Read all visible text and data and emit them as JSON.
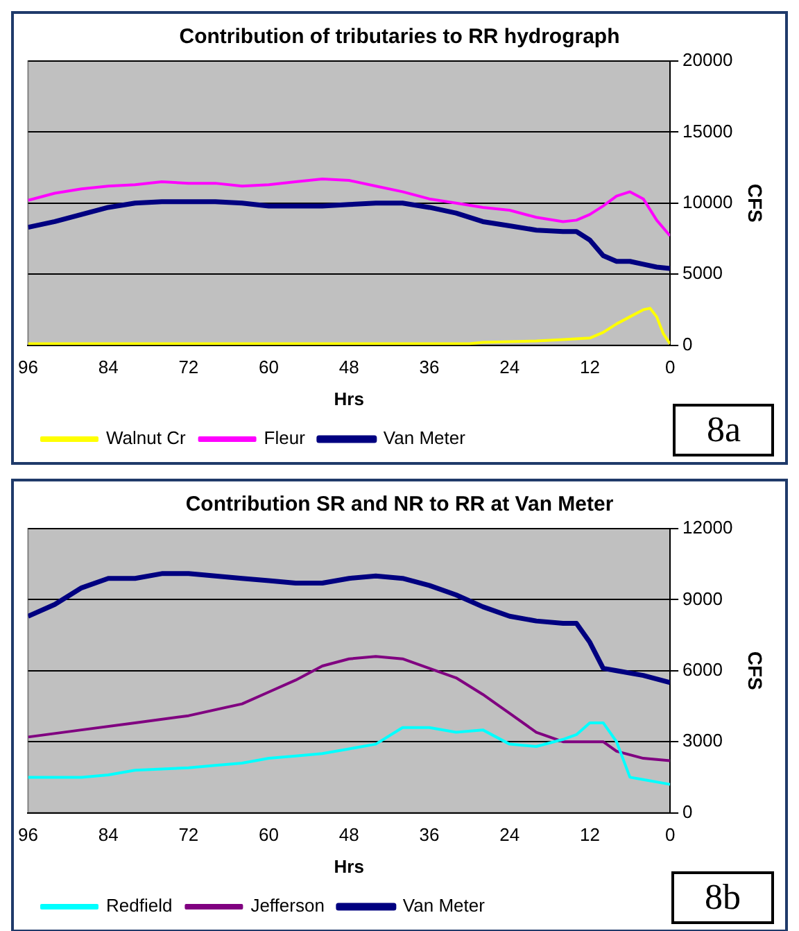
{
  "chart_data": [
    {
      "type": "line",
      "title": "Contribution of tributaries to RR hydrograph",
      "xlabel": "Hrs",
      "ylabel": "CFS",
      "xlim": [
        96,
        0
      ],
      "xticks": [
        96,
        84,
        72,
        60,
        48,
        36,
        24,
        12,
        0
      ],
      "ylim": [
        0,
        20000
      ],
      "yticks": [
        0,
        5000,
        10000,
        15000,
        20000
      ],
      "grid": "y",
      "legend": "bottom",
      "marker": "none",
      "annotations": [
        "8a"
      ],
      "series": [
        {
          "name": "Walnut Cr",
          "color": "#ffff00",
          "x": [
            96,
            80,
            60,
            40,
            30,
            28,
            20,
            16,
            12,
            10,
            8,
            6,
            4,
            3,
            2,
            1,
            0
          ],
          "values": [
            100,
            100,
            100,
            100,
            100,
            200,
            300,
            400,
            500,
            900,
            1500,
            2000,
            2500,
            2600,
            2000,
            800,
            100
          ]
        },
        {
          "name": "Fleur",
          "color": "#ff00ff",
          "x": [
            96,
            92,
            88,
            84,
            80,
            76,
            72,
            68,
            64,
            60,
            56,
            52,
            48,
            44,
            40,
            36,
            32,
            28,
            24,
            20,
            16,
            14,
            12,
            10,
            8,
            6,
            4,
            2,
            0
          ],
          "values": [
            10200,
            10700,
            11000,
            11200,
            11300,
            11500,
            11400,
            11400,
            11200,
            11300,
            11500,
            11700,
            11600,
            11200,
            10800,
            10300,
            10000,
            9700,
            9500,
            9000,
            8700,
            8800,
            9200,
            9800,
            10500,
            10800,
            10300,
            8800,
            7700
          ]
        },
        {
          "name": "Van Meter",
          "color": "#000080",
          "x": [
            96,
            92,
            88,
            84,
            80,
            76,
            72,
            68,
            64,
            60,
            56,
            52,
            48,
            44,
            40,
            36,
            32,
            28,
            24,
            20,
            16,
            14,
            12,
            10,
            8,
            6,
            4,
            2,
            0
          ],
          "values": [
            8300,
            8700,
            9200,
            9700,
            10000,
            10100,
            10100,
            10100,
            10000,
            9800,
            9800,
            9800,
            9900,
            10000,
            10000,
            9700,
            9300,
            8700,
            8400,
            8100,
            8000,
            8000,
            7400,
            6300,
            5900,
            5900,
            5700,
            5500,
            5400
          ]
        }
      ]
    },
    {
      "type": "line",
      "title": "Contribution SR and NR to RR at Van Meter",
      "xlabel": "Hrs",
      "ylabel": "CFS",
      "xlim": [
        96,
        0
      ],
      "xticks": [
        96,
        84,
        72,
        60,
        48,
        36,
        24,
        12,
        0
      ],
      "ylim": [
        0,
        12000
      ],
      "yticks": [
        0,
        3000,
        6000,
        9000,
        12000
      ],
      "grid": "y",
      "legend": "bottom",
      "marker": "none",
      "annotations": [
        "8b"
      ],
      "series": [
        {
          "name": "Redfield",
          "color": "#00ffff",
          "x": [
            96,
            88,
            84,
            80,
            72,
            68,
            64,
            60,
            56,
            52,
            48,
            44,
            40,
            36,
            32,
            28,
            24,
            20,
            16,
            14,
            12,
            10,
            8,
            6,
            4,
            0
          ],
          "values": [
            1500,
            1500,
            1600,
            1800,
            1900,
            2000,
            2100,
            2300,
            2400,
            2500,
            2700,
            2900,
            3600,
            3600,
            3400,
            3500,
            2900,
            2800,
            3100,
            3300,
            3800,
            3800,
            3000,
            1500,
            1400,
            1200
          ]
        },
        {
          "name": "Jefferson",
          "color": "#800080",
          "x": [
            96,
            88,
            80,
            72,
            64,
            60,
            56,
            52,
            48,
            44,
            40,
            36,
            32,
            28,
            24,
            20,
            16,
            12,
            10,
            8,
            4,
            0
          ],
          "values": [
            3200,
            3500,
            3800,
            4100,
            4600,
            5100,
            5600,
            6200,
            6500,
            6600,
            6500,
            6100,
            5700,
            5000,
            4200,
            3400,
            3000,
            3000,
            3000,
            2600,
            2300,
            2200
          ]
        },
        {
          "name": "Van Meter",
          "color": "#000080",
          "x": [
            96,
            92,
            88,
            84,
            80,
            76,
            72,
            68,
            64,
            60,
            56,
            52,
            48,
            44,
            40,
            36,
            32,
            28,
            24,
            20,
            16,
            14,
            12,
            10,
            8,
            4,
            0
          ],
          "values": [
            8300,
            8800,
            9500,
            9900,
            9900,
            10100,
            10100,
            10000,
            9900,
            9800,
            9700,
            9700,
            9900,
            10000,
            9900,
            9600,
            9200,
            8700,
            8300,
            8100,
            8000,
            8000,
            7200,
            6100,
            6000,
            5800,
            5500
          ]
        }
      ]
    }
  ]
}
